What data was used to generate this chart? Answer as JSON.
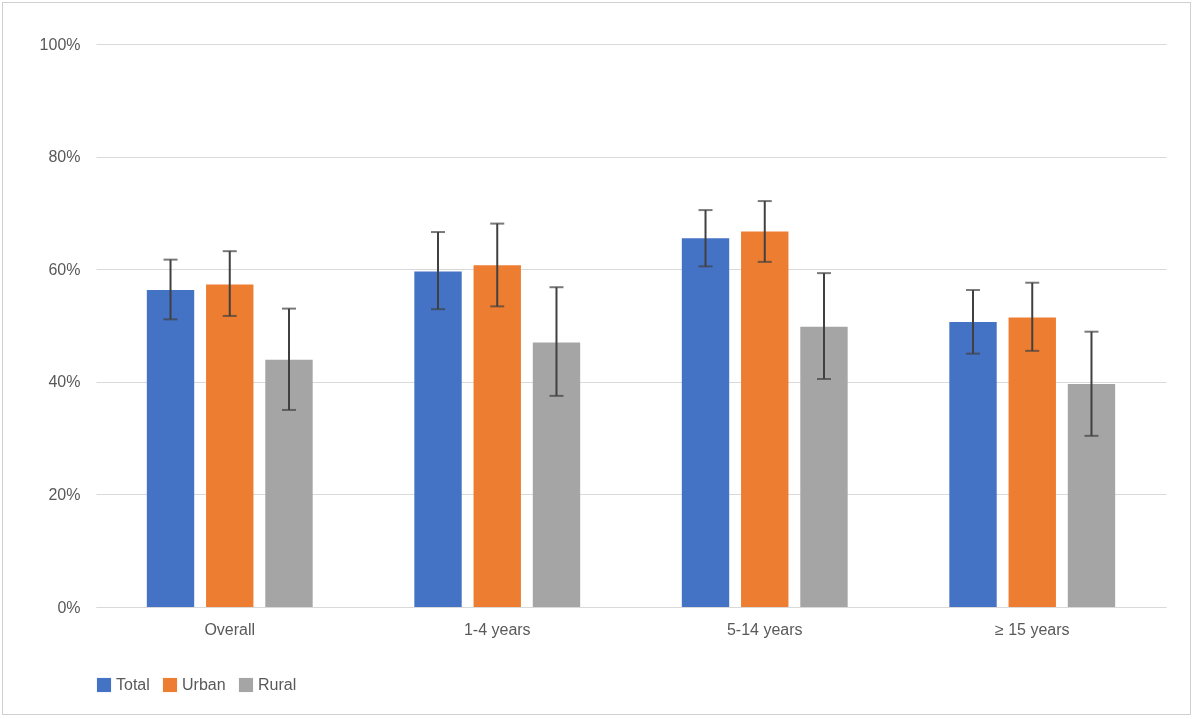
{
  "chart_data": {
    "type": "bar",
    "categories": [
      "Overall",
      "1-4 years",
      "5-14 years",
      "≥ 15 years"
    ],
    "series": [
      {
        "name": "Total",
        "color": "#4472c4",
        "values": [
          56.3,
          59.6,
          65.5,
          50.6
        ],
        "errors": [
          [
            51.1,
            61.7
          ],
          [
            52.9,
            66.6
          ],
          [
            60.5,
            70.5
          ],
          [
            45.0,
            56.3
          ]
        ]
      },
      {
        "name": "Urban",
        "color": "#ed7d31",
        "values": [
          57.3,
          60.7,
          66.7,
          51.4
        ],
        "errors": [
          [
            51.7,
            63.2
          ],
          [
            53.4,
            68.1
          ],
          [
            61.3,
            72.1
          ],
          [
            45.5,
            57.6
          ]
        ]
      },
      {
        "name": "Rural",
        "color": "#a5a5a5",
        "values": [
          43.9,
          47.0,
          49.8,
          39.6
        ],
        "errors": [
          [
            35.0,
            53.0
          ],
          [
            37.5,
            56.8
          ],
          [
            40.5,
            59.3
          ],
          [
            30.4,
            48.9
          ]
        ]
      }
    ],
    "ylim": [
      0,
      100
    ],
    "yticks": [
      {
        "value": 0,
        "label": "0%"
      },
      {
        "value": 20,
        "label": "20%"
      },
      {
        "value": 40,
        "label": "40%"
      },
      {
        "value": 60,
        "label": "60%"
      },
      {
        "value": 80,
        "label": "80%"
      },
      {
        "value": 100,
        "label": "100%"
      }
    ],
    "grid": "y",
    "legend": "bottom"
  }
}
